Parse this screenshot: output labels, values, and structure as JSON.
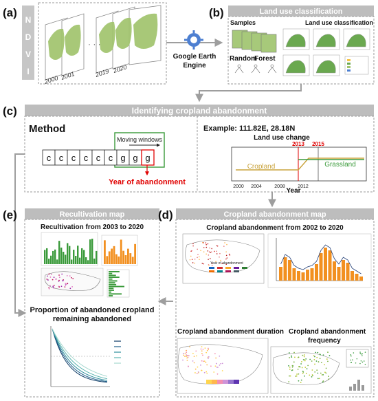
{
  "panels": {
    "a": {
      "label": "(a)",
      "side_letters": [
        "N",
        "D",
        "V",
        "I"
      ],
      "years": [
        "2000",
        "2001",
        "2019",
        "2020"
      ]
    },
    "b": {
      "label": "(b)",
      "title": "Land use classification",
      "samples": "Samples",
      "classification": "Land use classification",
      "random_forest_1": "Random",
      "random_forest_2": "Forest",
      "gee_1": "Google Earth",
      "gee_2": "Engine"
    },
    "c": {
      "label": "(c)",
      "title": "Identifying cropland abandonment",
      "method": "Method",
      "moving_windows": "Moving windows",
      "sequence": [
        "c",
        "c",
        "c",
        "c",
        "c",
        "c",
        "g",
        "g",
        "g"
      ],
      "year_of_abandonment": "Year of abandonment",
      "example": "Example: 111.82E, 28.18N",
      "land_use_change": "Land use change",
      "marker_2013": "2013",
      "marker_2015": "2015",
      "cropland": "Cropland",
      "grassland": "Grassland",
      "x_ticks": [
        "2000",
        "2004",
        "2008",
        "2012"
      ],
      "x_label": "Year"
    },
    "d": {
      "label": "(d)",
      "title": "Cropland abandonment map",
      "subtitle": "Cropland abandonment from 2002 to 2020",
      "duration": "Cropland abandonment duration",
      "frequency_1": "Cropland abandonment",
      "frequency_2": "frequency",
      "legend_title": "Year of abandonment"
    },
    "e": {
      "label": "(e)",
      "title": "Recultivation map",
      "subtitle": "Recultivation from 2003 to 2020",
      "proportion_1": "Proportion of abandoned cropland",
      "proportion_2": "remaining abandoned"
    }
  },
  "colors": {
    "header_gray": "#bdbdbd",
    "arrow_gray": "#9e9e9e",
    "red": "#e00000",
    "orange": "#f29020",
    "green": "#3a9a3a",
    "crop_line": "#c9a33c",
    "grass_line": "#3a9a3a"
  }
}
